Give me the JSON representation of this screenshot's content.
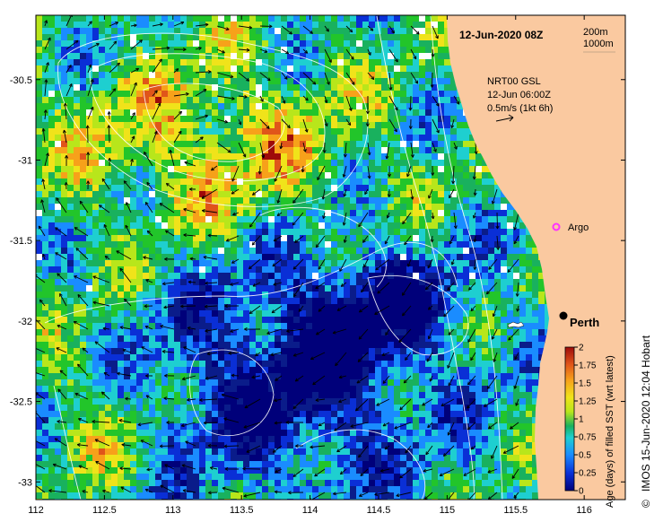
{
  "title": "12-Jun-2020 08Z",
  "contour_legend": {
    "line1": "200m",
    "line2": "1000m"
  },
  "current_info": {
    "product": "NRT00 GSL",
    "time": "12-Jun 06:00Z",
    "scale": "0.5m/s (1kt 6h)"
  },
  "city": {
    "name": "Perth",
    "lon": 115.86,
    "lat": -31.95
  },
  "argo": {
    "label": "Argo",
    "lon": 115.83,
    "lat": -31.45,
    "color": "#ff33ff"
  },
  "x_ticks": [
    "112",
    "112.5",
    "113",
    "113.5",
    "114",
    "114.5",
    "115",
    "115.5",
    "116"
  ],
  "y_ticks": [
    "-30.5",
    "-31",
    "-31.5",
    "-32",
    "-32.5",
    "-33"
  ],
  "colorbar": {
    "title": "Age (days) of filled SST (wrt latest)",
    "ticks": [
      "0",
      "0.25",
      "0.5",
      "0.75",
      "1",
      "1.25",
      "1.5",
      "1.75",
      "2"
    ]
  },
  "credit": "IMOS 15-Jun-2020 12:04 Hobart",
  "copyright": "©",
  "colors": {
    "land": "#fac9a0",
    "ocean_deep": "#0a1c8a",
    "missing": "#ffffff"
  }
}
